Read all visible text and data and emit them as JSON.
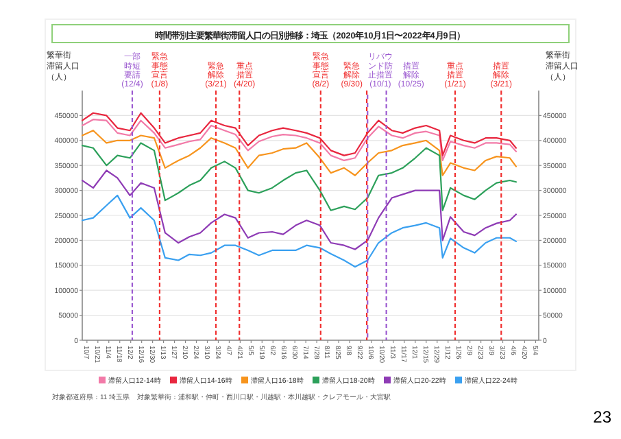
{
  "chart_data": {
    "type": "line",
    "title": "時間帯別主要繁華街滞留人口の日別推移：埼玉（2020年10月1日〜2022年4月9日）",
    "ylabel": "繁華街滞留人口（人）",
    "y2label": "繁華街滞留人口（人）",
    "x": [
      "2020-10-01",
      "2020-10-15",
      "2020-11-01",
      "2020-11-15",
      "2020-12-01",
      "2020-12-15",
      "2021-01-01",
      "2021-01-15",
      "2021-02-01",
      "2021-02-15",
      "2021-03-01",
      "2021-03-15",
      "2021-04-01",
      "2021-04-15",
      "2021-05-01",
      "2021-05-15",
      "2021-06-01",
      "2021-06-15",
      "2021-07-01",
      "2021-07-15",
      "2021-08-01",
      "2021-08-15",
      "2021-09-01",
      "2021-09-15",
      "2021-10-01",
      "2021-10-15",
      "2021-11-01",
      "2021-11-15",
      "2021-12-01",
      "2021-12-15",
      "2022-01-01",
      "2022-01-05",
      "2022-01-15",
      "2022-02-01",
      "2022-02-15",
      "2022-03-01",
      "2022-03-15",
      "2022-04-01",
      "2022-04-09"
    ],
    "series": [
      {
        "name": "滞留人口12-14時",
        "color": "#f27aa8",
        "values": [
          430000,
          442000,
          440000,
          415000,
          410000,
          440000,
          415000,
          385000,
          392000,
          398000,
          402000,
          430000,
          420000,
          412000,
          380000,
          398000,
          408000,
          412000,
          410000,
          405000,
          395000,
          370000,
          360000,
          365000,
          405000,
          428000,
          410000,
          405000,
          415000,
          418000,
          410000,
          360000,
          398000,
          390000,
          385000,
          395000,
          395000,
          392000,
          378000
        ]
      },
      {
        "name": "滞留人口14-16時",
        "color": "#e8273f",
        "values": [
          440000,
          455000,
          450000,
          425000,
          420000,
          455000,
          425000,
          395000,
          405000,
          410000,
          415000,
          440000,
          430000,
          425000,
          390000,
          410000,
          420000,
          425000,
          420000,
          415000,
          405000,
          380000,
          370000,
          375000,
          415000,
          440000,
          420000,
          415000,
          425000,
          430000,
          420000,
          370000,
          410000,
          400000,
          395000,
          405000,
          405000,
          400000,
          385000
        ]
      },
      {
        "name": "滞留人口16-18時",
        "color": "#f7941d",
        "values": [
          410000,
          420000,
          395000,
          400000,
          400000,
          410000,
          405000,
          345000,
          360000,
          370000,
          385000,
          405000,
          395000,
          385000,
          345000,
          370000,
          375000,
          383000,
          385000,
          395000,
          365000,
          335000,
          345000,
          330000,
          355000,
          375000,
          380000,
          390000,
          395000,
          400000,
          380000,
          330000,
          355000,
          345000,
          340000,
          360000,
          368000,
          365000,
          348000
        ]
      },
      {
        "name": "滞留人口18-20時",
        "color": "#2ca05a",
        "values": [
          390000,
          385000,
          350000,
          370000,
          365000,
          395000,
          380000,
          280000,
          295000,
          310000,
          320000,
          345000,
          358000,
          345000,
          300000,
          295000,
          305000,
          320000,
          335000,
          340000,
          300000,
          260000,
          268000,
          262000,
          285000,
          330000,
          335000,
          345000,
          365000,
          385000,
          370000,
          260000,
          305000,
          290000,
          282000,
          300000,
          315000,
          320000,
          317000
        ]
      },
      {
        "name": "滞留人口20-22時",
        "color": "#8e3bb5",
        "values": [
          320000,
          305000,
          340000,
          325000,
          290000,
          315000,
          305000,
          215000,
          195000,
          207000,
          215000,
          235000,
          252000,
          245000,
          205000,
          215000,
          217000,
          212000,
          230000,
          240000,
          230000,
          195000,
          190000,
          182000,
          200000,
          245000,
          285000,
          292000,
          300000,
          300000,
          300000,
          200000,
          247000,
          217000,
          210000,
          225000,
          234000,
          240000,
          252000
        ]
      },
      {
        "name": "滞留人口22-24時",
        "color": "#3aa0f0",
        "values": [
          240000,
          245000,
          270000,
          290000,
          245000,
          265000,
          240000,
          165000,
          160000,
          172000,
          170000,
          175000,
          190000,
          190000,
          180000,
          170000,
          180000,
          180000,
          180000,
          190000,
          185000,
          173000,
          160000,
          147000,
          160000,
          195000,
          215000,
          225000,
          230000,
          235000,
          225000,
          165000,
          204000,
          185000,
          175000,
          195000,
          205000,
          205000,
          198000
        ]
      }
    ],
    "xlim": [
      "2020-10-01",
      "2022-05-08"
    ],
    "xticks": [
      {
        "value": "2020-10-07",
        "label": "10/7"
      },
      {
        "value": "2020-10-21",
        "label": "10/21"
      },
      {
        "value": "2020-11-04",
        "label": "11/4"
      },
      {
        "value": "2020-11-18",
        "label": "11/18"
      },
      {
        "value": "2020-12-02",
        "label": "12/2"
      },
      {
        "value": "2020-12-16",
        "label": "12/16"
      },
      {
        "value": "2020-12-30",
        "label": "12/30"
      },
      {
        "value": "2021-01-13",
        "label": "1/13"
      },
      {
        "value": "2021-01-27",
        "label": "1/27"
      },
      {
        "value": "2021-02-10",
        "label": "2/10"
      },
      {
        "value": "2021-02-24",
        "label": "2/24"
      },
      {
        "value": "2021-03-10",
        "label": "3/10"
      },
      {
        "value": "2021-03-24",
        "label": "3/24"
      },
      {
        "value": "2021-04-07",
        "label": "4/7"
      },
      {
        "value": "2021-04-21",
        "label": "4/21"
      },
      {
        "value": "2021-05-05",
        "label": "5/5"
      },
      {
        "value": "2021-05-19",
        "label": "5/19"
      },
      {
        "value": "2021-06-02",
        "label": "6/2"
      },
      {
        "value": "2021-06-16",
        "label": "6/16"
      },
      {
        "value": "2021-06-30",
        "label": "6/30"
      },
      {
        "value": "2021-07-14",
        "label": "7/14"
      },
      {
        "value": "2021-07-28",
        "label": "7/28"
      },
      {
        "value": "2021-08-11",
        "label": "8/11"
      },
      {
        "value": "2021-08-25",
        "label": "8/25"
      },
      {
        "value": "2021-09-08",
        "label": "9/8"
      },
      {
        "value": "2021-09-22",
        "label": "9/22"
      },
      {
        "value": "2021-10-06",
        "label": "10/6"
      },
      {
        "value": "2021-10-20",
        "label": "10/20"
      },
      {
        "value": "2021-11-03",
        "label": "11/3"
      },
      {
        "value": "2021-11-17",
        "label": "11/17"
      },
      {
        "value": "2021-12-01",
        "label": "12/1"
      },
      {
        "value": "2021-12-15",
        "label": "12/15"
      },
      {
        "value": "2021-12-29",
        "label": "12/29"
      },
      {
        "value": "2022-01-12",
        "label": "1/12"
      },
      {
        "value": "2022-01-26",
        "label": "1/26"
      },
      {
        "value": "2022-02-09",
        "label": "2/9"
      },
      {
        "value": "2022-02-23",
        "label": "2/23"
      },
      {
        "value": "2022-03-09",
        "label": "3/9"
      },
      {
        "value": "2022-03-23",
        "label": "3/23"
      },
      {
        "value": "2022-04-06",
        "label": "4/6"
      },
      {
        "value": "2022-04-20",
        "label": "4/20"
      },
      {
        "value": "2022-05-04",
        "label": "5/4"
      }
    ],
    "ylim": [
      0,
      500000
    ],
    "yticks": [
      0,
      50000,
      100000,
      150000,
      200000,
      250000,
      300000,
      350000,
      400000,
      450000
    ],
    "y2lim": [
      0,
      500000
    ],
    "y2ticks": [
      0,
      50000,
      100000,
      150000,
      200000,
      250000,
      300000,
      350000,
      400000,
      450000
    ],
    "ref_lines": [
      {
        "axis": "x",
        "value": "2020-12-04",
        "label": "一部時短要請(12/4)",
        "color": "#9b59d0",
        "line_style": "dashed"
      },
      {
        "axis": "x",
        "value": "2021-01-08",
        "label": "緊急事態宣言(1/8)",
        "color": "#f03030",
        "line_style": "dashed"
      },
      {
        "axis": "x",
        "value": "2021-03-21",
        "label": "緊急解除(3/21)",
        "color": "#f03030",
        "line_style": "dashed"
      },
      {
        "axis": "x",
        "value": "2021-04-20",
        "label": "重点措置(4/20)",
        "color": "#f03030",
        "line_style": "dashed"
      },
      {
        "axis": "x",
        "value": "2021-08-02",
        "label": "緊急事態宣言(8/2)",
        "color": "#f03030",
        "line_style": "dashed"
      },
      {
        "axis": "x",
        "value": "2021-09-30",
        "label": "緊急解除(9/30)",
        "color": "#f03030",
        "line_style": "dashed"
      },
      {
        "axis": "x",
        "value": "2021-10-01",
        "label": "リバウンド防止措置(10/1)",
        "color": "#9b59d0",
        "line_style": "dashed"
      },
      {
        "axis": "x",
        "value": "2021-10-25",
        "label": "措置解除(10/25)",
        "color": "#9b59d0",
        "line_style": "dashed"
      },
      {
        "axis": "x",
        "value": "2022-01-21",
        "label": "重点措置(1/21)",
        "color": "#f03030",
        "line_style": "dashed"
      },
      {
        "axis": "x",
        "value": "2022-03-21",
        "label": "措置解除(3/21)",
        "color": "#f03030",
        "line_style": "dashed"
      }
    ],
    "grid": "y",
    "legend": "bottom",
    "marker": "none",
    "line_style": "solid",
    "annotations": [
      "対象都道府県：11 埼玉県",
      "対象繁華街：浦和駅・仲町・西川口駅・川越駅・本川越駅・クレアモール・大宮駅",
      "23"
    ]
  }
}
